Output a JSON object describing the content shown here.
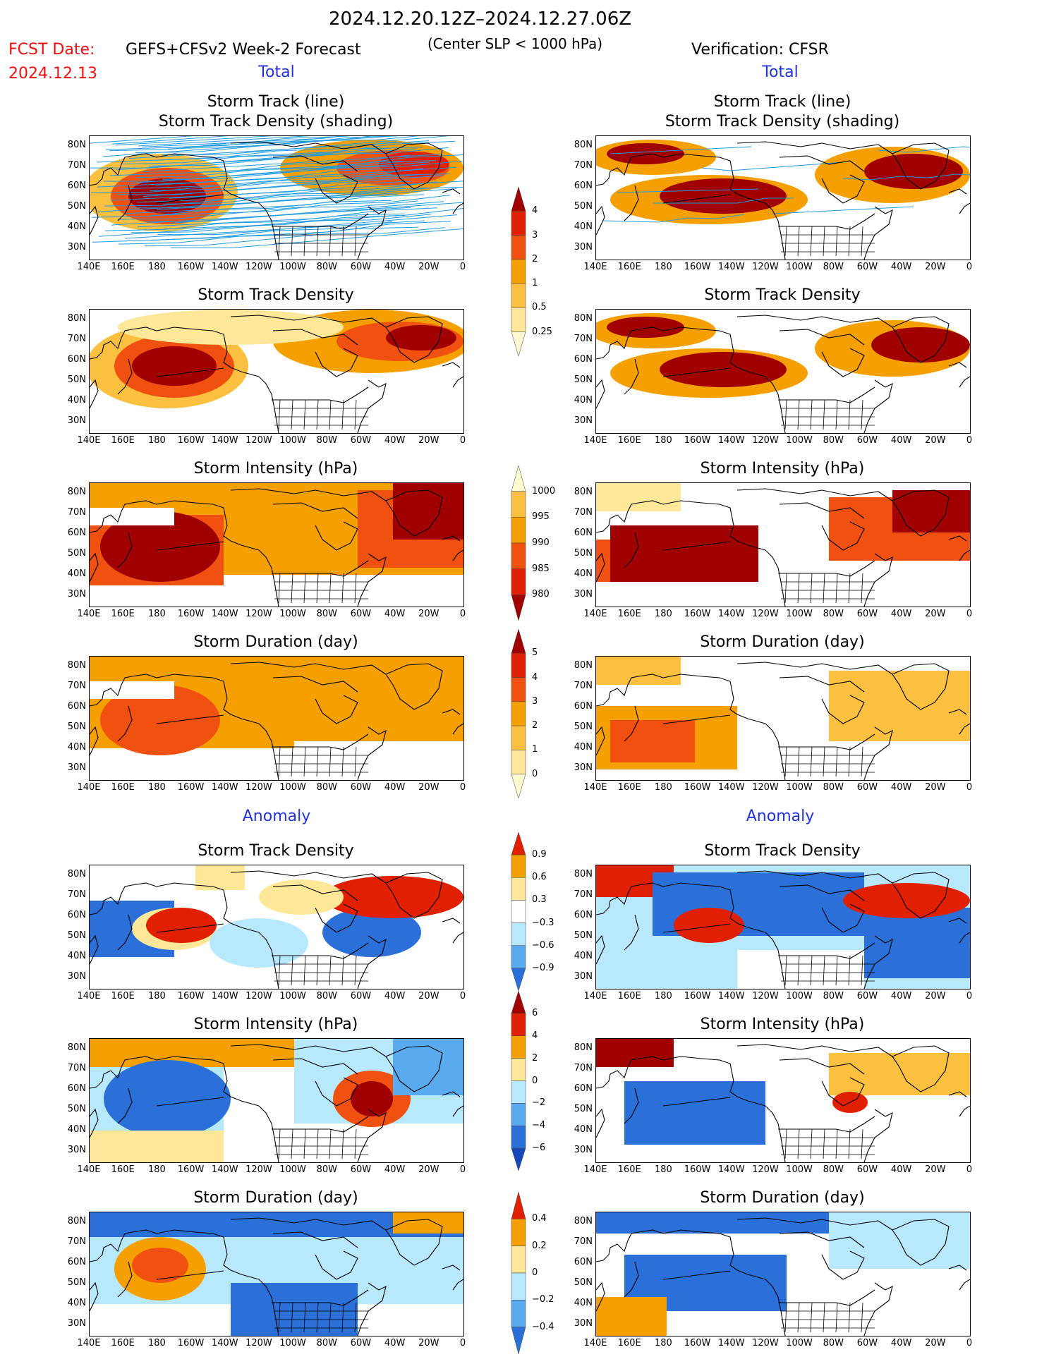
{
  "header": {
    "date_range": "2024.12.20.12Z–2024.12.27.06Z",
    "fcst_date_label": "FCST Date:",
    "fcst_date_value": "2024.12.13",
    "forecast_title": "GEFS+CFSv2 Week-2 Forecast",
    "criterion": "(Center SLP < 1000 hPa)",
    "verification": "Verification: CFSR"
  },
  "sections": {
    "total_left": "Total",
    "total_right": "Total",
    "anomaly_left": "Anomaly",
    "anomaly_right": "Anomaly"
  },
  "panel_titles": {
    "track_line": "Storm Track (line)",
    "track_density_shading": "Storm Track Density (shading)",
    "track_density": "Storm Track Density",
    "intensity": "Storm Intensity (hPa)",
    "duration": "Storm Duration (day)"
  },
  "axes": {
    "lat_labels": [
      "80N",
      "70N",
      "60N",
      "50N",
      "40N",
      "30N"
    ],
    "lon_labels": [
      "140E",
      "160E",
      "180",
      "160W",
      "140W",
      "120W",
      "100W",
      "80W",
      "60W",
      "40W",
      "20W",
      "0"
    ]
  },
  "colorbars": {
    "density_total": [
      "4",
      "3",
      "2",
      "1",
      "0.5",
      "0.25"
    ],
    "intensity_total": [
      "1000",
      "995",
      "990",
      "985",
      "980"
    ],
    "duration_total": [
      "5",
      "4",
      "3",
      "2",
      "1",
      "0"
    ],
    "density_anom": [
      "0.9",
      "0.6",
      "0.3",
      "−0.3",
      "−0.6",
      "−0.9"
    ],
    "intensity_anom": [
      "6",
      "4",
      "2",
      "0",
      "−2",
      "−4",
      "−6"
    ],
    "duration_anom": [
      "0.4",
      "0.2",
      "0",
      "−0.2",
      "−0.4"
    ]
  },
  "colors": {
    "dark_red": "#a00000",
    "red": "#e02000",
    "orange_red": "#f05010",
    "orange": "#f5a000",
    "light_orange": "#fbc040",
    "pale_yellow": "#fde89a",
    "light_blue": "#b8e8fb",
    "mid_blue": "#5aaaf0",
    "blue": "#2a70d8",
    "dark_blue": "#1548b8",
    "track_line": "#1f9ae0",
    "title_red": "#e11111",
    "title_blue": "#2233dd"
  }
}
